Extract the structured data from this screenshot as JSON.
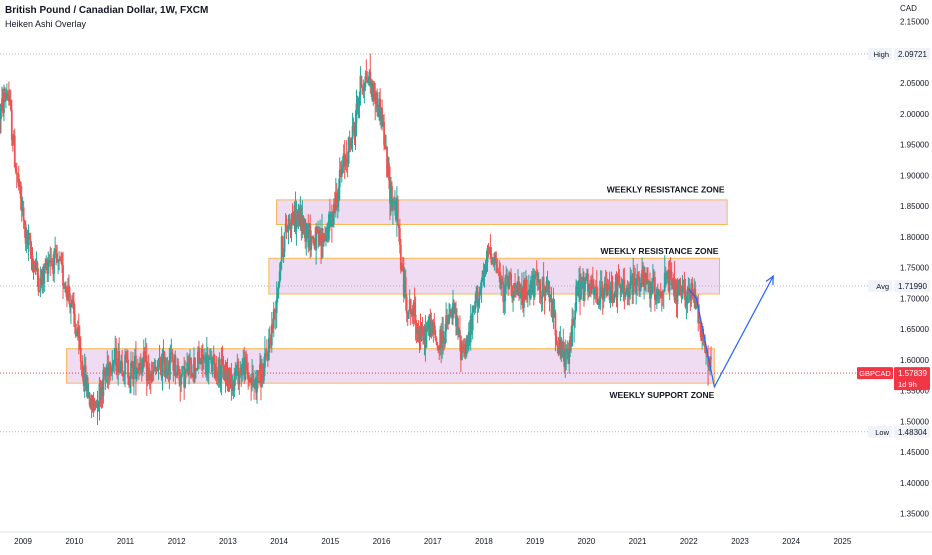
{
  "header": {
    "title": "British Pound / Canadian Dollar, 1W, FXCM",
    "indicator": "Heiken Ashi Overlay"
  },
  "colors": {
    "up": "#26a69a",
    "down": "#ef5350",
    "zone_fill": "#e1bee7",
    "zone_border": "#f7b955",
    "arrow": "#2962ff",
    "last_price": "#f23645",
    "axis_text": "#131722",
    "grid_dotted": "#b2b5be"
  },
  "chart_data": {
    "type": "candlestick",
    "symbol": "GBPCAD",
    "timeframe": "1W",
    "currency": "CAD",
    "y_range": [
      1.32,
      2.185
    ],
    "y_ticks": [
      1.35,
      1.4,
      1.45,
      1.5,
      1.55,
      1.6,
      1.65,
      1.7,
      1.75,
      1.8,
      1.85,
      1.9,
      1.95,
      2.0,
      2.05,
      2.1,
      2.15
    ],
    "x_range": [
      2008.55,
      2025.5
    ],
    "x_ticks": [
      {
        "label": "2009",
        "t": 2009.0
      },
      {
        "label": "2010",
        "t": 2010.0
      },
      {
        "label": "2011",
        "t": 2011.0
      },
      {
        "label": "2012",
        "t": 2012.0
      },
      {
        "label": "2013",
        "t": 2013.0
      },
      {
        "label": "2014",
        "t": 2014.0
      },
      {
        "label": "2015",
        "t": 2015.0
      },
      {
        "label": "2016",
        "t": 2016.0
      },
      {
        "label": "2017",
        "t": 2017.0
      },
      {
        "label": "2018",
        "t": 2018.0
      },
      {
        "label": "2019",
        "t": 2019.0
      },
      {
        "label": "2020",
        "t": 2020.0
      },
      {
        "label": "2021",
        "t": 2021.0
      },
      {
        "label": "2022",
        "t": 2022.0
      },
      {
        "label": "2023",
        "t": 2023.0
      },
      {
        "label": "2024",
        "t": 2024.0
      },
      {
        "label": "2025",
        "t": 2025.0
      }
    ],
    "price_path": [
      [
        2008.55,
        2.0
      ],
      [
        2008.7,
        2.04
      ],
      [
        2008.85,
        1.92
      ],
      [
        2009.05,
        1.8
      ],
      [
        2009.2,
        1.76
      ],
      [
        2009.35,
        1.72
      ],
      [
        2009.5,
        1.77
      ],
      [
        2009.7,
        1.75
      ],
      [
        2009.9,
        1.71
      ],
      [
        2010.05,
        1.64
      ],
      [
        2010.2,
        1.57
      ],
      [
        2010.35,
        1.52
      ],
      [
        2010.5,
        1.55
      ],
      [
        2010.7,
        1.6
      ],
      [
        2010.9,
        1.6
      ],
      [
        2011.1,
        1.58
      ],
      [
        2011.3,
        1.6
      ],
      [
        2011.5,
        1.57
      ],
      [
        2011.7,
        1.59
      ],
      [
        2011.9,
        1.6
      ],
      [
        2012.1,
        1.57
      ],
      [
        2012.3,
        1.59
      ],
      [
        2012.5,
        1.6
      ],
      [
        2012.7,
        1.59
      ],
      [
        2012.9,
        1.58
      ],
      [
        2013.1,
        1.57
      ],
      [
        2013.3,
        1.59
      ],
      [
        2013.5,
        1.56
      ],
      [
        2013.7,
        1.58
      ],
      [
        2013.9,
        1.67
      ],
      [
        2014.05,
        1.78
      ],
      [
        2014.2,
        1.83
      ],
      [
        2014.4,
        1.83
      ],
      [
        2014.6,
        1.8
      ],
      [
        2014.8,
        1.79
      ],
      [
        2015.0,
        1.82
      ],
      [
        2015.15,
        1.88
      ],
      [
        2015.3,
        1.93
      ],
      [
        2015.45,
        1.97
      ],
      [
        2015.6,
        2.05
      ],
      [
        2015.75,
        2.06
      ],
      [
        2015.85,
        2.03
      ],
      [
        2016.0,
        2.0
      ],
      [
        2016.15,
        1.88
      ],
      [
        2016.3,
        1.84
      ],
      [
        2016.4,
        1.74
      ],
      [
        2016.5,
        1.69
      ],
      [
        2016.65,
        1.67
      ],
      [
        2016.8,
        1.63
      ],
      [
        2016.95,
        1.66
      ],
      [
        2017.1,
        1.62
      ],
      [
        2017.25,
        1.65
      ],
      [
        2017.4,
        1.68
      ],
      [
        2017.55,
        1.62
      ],
      [
        2017.7,
        1.63
      ],
      [
        2017.85,
        1.7
      ],
      [
        2018.0,
        1.73
      ],
      [
        2018.1,
        1.78
      ],
      [
        2018.2,
        1.77
      ],
      [
        2018.35,
        1.71
      ],
      [
        2018.5,
        1.73
      ],
      [
        2018.7,
        1.7
      ],
      [
        2018.9,
        1.72
      ],
      [
        2019.1,
        1.72
      ],
      [
        2019.3,
        1.7
      ],
      [
        2019.5,
        1.61
      ],
      [
        2019.65,
        1.6
      ],
      [
        2019.8,
        1.71
      ],
      [
        2020.0,
        1.72
      ],
      [
        2020.2,
        1.7
      ],
      [
        2020.4,
        1.71
      ],
      [
        2020.6,
        1.72
      ],
      [
        2020.8,
        1.71
      ],
      [
        2021.0,
        1.73
      ],
      [
        2021.2,
        1.72
      ],
      [
        2021.4,
        1.71
      ],
      [
        2021.6,
        1.73
      ],
      [
        2021.8,
        1.7
      ],
      [
        2022.0,
        1.71
      ],
      [
        2022.15,
        1.7
      ],
      [
        2022.3,
        1.62
      ],
      [
        2022.45,
        1.58
      ]
    ],
    "zones": [
      {
        "label": "WEEKLY RESISTANCE ZONE",
        "t0": 2013.95,
        "t1": 2022.75,
        "y0": 1.82,
        "y1": 1.86,
        "label_t": 2022.7,
        "label_y": 1.872,
        "anchor": "end"
      },
      {
        "label": "WEEKLY RESISTANCE ZONE",
        "t0": 2013.8,
        "t1": 2022.6,
        "y0": 1.707,
        "y1": 1.765,
        "label_t": 2022.58,
        "label_y": 1.772,
        "anchor": "end"
      },
      {
        "label": "WEEKLY SUPPORT ZONE",
        "t0": 2009.85,
        "t1": 2022.5,
        "y0": 1.562,
        "y1": 1.618,
        "label_t": 2022.5,
        "label_y": 1.538,
        "anchor": "end"
      }
    ],
    "projection": [
      [
        2022.0,
        1.715
      ],
      [
        2022.15,
        1.7
      ],
      [
        2022.5,
        1.556
      ],
      [
        2023.65,
        1.736
      ]
    ],
    "price_labels": {
      "high": {
        "label": "High",
        "value": "2.09721",
        "y": 2.0972
      },
      "avg": {
        "label": "Avg",
        "value": "1.71990",
        "y": 1.7199
      },
      "low": {
        "label": "Low",
        "value": "1.48304",
        "y": 1.483
      },
      "last": {
        "symbol": "GBPCAD",
        "value": "1.57839",
        "countdown": "1d 9h",
        "y": 1.5784
      }
    }
  }
}
